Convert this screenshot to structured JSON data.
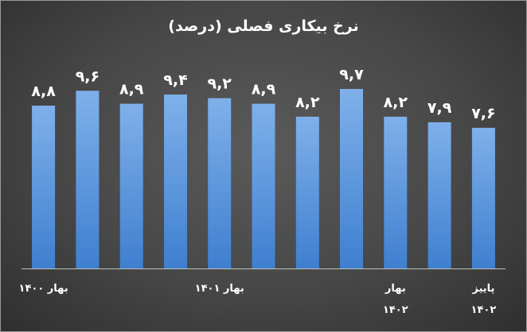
{
  "chart_data": {
    "type": "bar",
    "title": "نرخ بیکاری فصلی (درصد)",
    "values": [
      8.8,
      9.6,
      8.9,
      9.4,
      9.2,
      8.9,
      8.2,
      9.7,
      8.2,
      7.9,
      7.6
    ],
    "value_labels": [
      "۸,۸",
      "۹,۶",
      "۸,۹",
      "۹,۴",
      "۹,۲",
      "۸,۹",
      "۸,۲",
      "۹,۷",
      "۸,۲",
      "۷,۹",
      "۷,۶"
    ],
    "category_labels": [
      {
        "index": 0,
        "lines": [
          "بهار ۱۴۰۰"
        ]
      },
      {
        "index": 4,
        "lines": [
          "بهار ۱۴۰۱"
        ]
      },
      {
        "index": 8,
        "lines": [
          "بهار",
          "۱۴۰۲"
        ]
      },
      {
        "index": 10,
        "lines": [
          "پاییز",
          "۱۴۰۲"
        ]
      }
    ],
    "ylim": [
      0,
      12
    ],
    "grid": false,
    "legend": "none",
    "colors": {
      "bar_top": "#7fb0ea",
      "bar_bottom": "#3f7fd0",
      "axis": "#bfbfbf",
      "text": "#ffffff"
    }
  }
}
